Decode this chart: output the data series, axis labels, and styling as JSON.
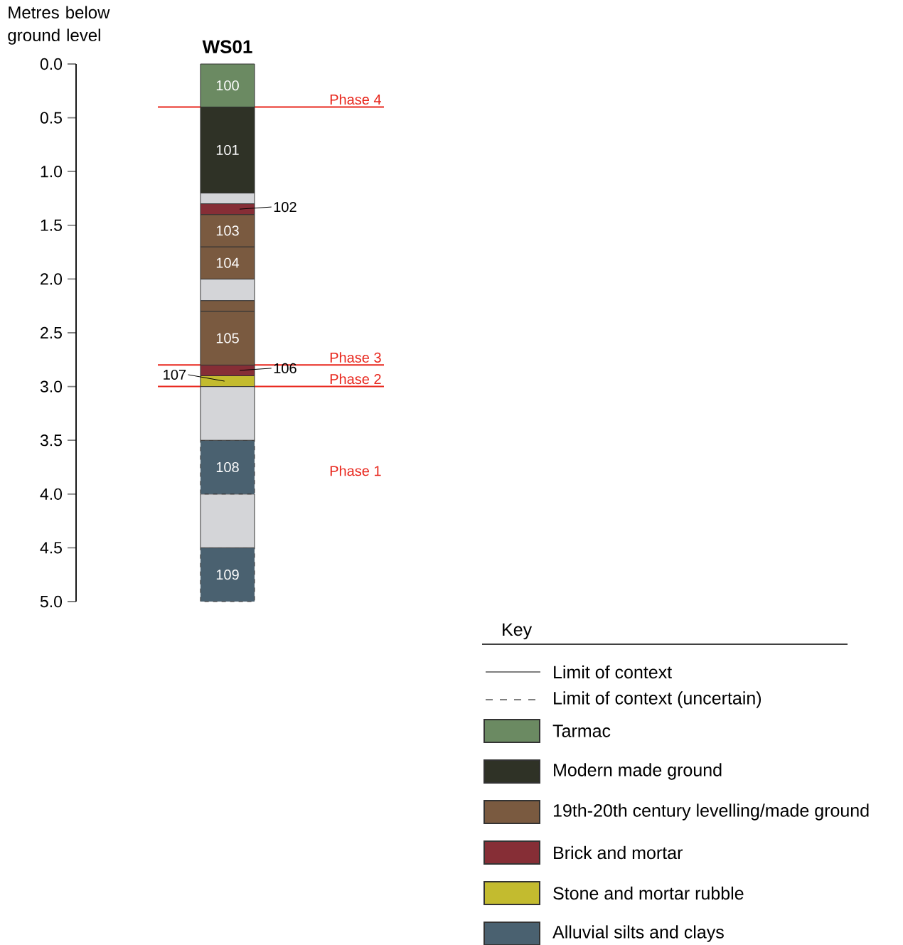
{
  "chart_data": {
    "type": "bar",
    "stacked": true,
    "categories": [
      "WS01"
    ],
    "ylabel": "Metres below ground level",
    "ylim": [
      5,
      0
    ],
    "yticks": [
      {
        "value": 0,
        "label": "0.0"
      },
      {
        "value": 0.5,
        "label": "0.5"
      },
      {
        "value": 1,
        "label": "1.0"
      },
      {
        "value": 1.5,
        "label": "1.5"
      },
      {
        "value": 2,
        "label": "2.0"
      },
      {
        "value": 2.5,
        "label": "2.5"
      },
      {
        "value": 3,
        "label": "3.0"
      },
      {
        "value": 3.5,
        "label": "3.5"
      },
      {
        "value": 4,
        "label": "4.0"
      },
      {
        "value": 4.5,
        "label": "4.5"
      },
      {
        "value": 5,
        "label": "5.0"
      }
    ],
    "series": [
      {
        "name": "Tarmac",
        "color": "#6b8a62",
        "values": [
          0.4
        ]
      },
      {
        "name": "Modern made ground",
        "color": "#2f3226",
        "values": [
          0.8
        ]
      },
      {
        "color": "#d4d5d8",
        "values": [
          0.1
        ]
      },
      {
        "color": "#862e36",
        "values": [
          0.1
        ]
      },
      {
        "name": "19th-20th century levelling/made ground",
        "color": "#7a5a40",
        "values": [
          0.3
        ]
      },
      {
        "color": "#7a5a40",
        "values": [
          0.3
        ]
      },
      {
        "color": "#d4d5d8",
        "values": [
          0.2
        ]
      },
      {
        "color": "#7a5a40",
        "values": [
          0.1
        ]
      },
      {
        "color": "#7a5a40",
        "values": [
          0.5
        ]
      },
      {
        "name": "Brick and mortar",
        "color": "#862e36",
        "values": [
          0.1
        ]
      },
      {
        "name": "Stone and mortar rubble",
        "color": "#c3bb2f",
        "values": [
          0.1
        ]
      },
      {
        "color": "#d4d5d8",
        "values": [
          0.5
        ]
      },
      {
        "name": "Alluvial silts and clays",
        "color": "#4a6170",
        "values": [
          0.5
        ],
        "line_style": "dashed"
      },
      {
        "color": "#d4d5d8",
        "values": [
          0.5
        ]
      },
      {
        "color": "#4a6170",
        "values": [
          0.5
        ],
        "line_style": "dashed"
      }
    ],
    "ref_lines": [
      {
        "axis": "y",
        "value": 0.4,
        "label": "Phase 4",
        "color": "#e8261c"
      },
      {
        "axis": "y",
        "value": 2.8,
        "label": "Phase 3",
        "color": "#e8261c"
      },
      {
        "axis": "y",
        "value": 3.0,
        "label": "Phase 2",
        "color": "#e8261c"
      }
    ],
    "annotations": [
      "Phase 1",
      "100",
      "101",
      "102",
      "103",
      "104",
      "105",
      "106",
      "107",
      "108",
      "109",
      "Limit of context",
      "Limit of context (uncertain)"
    ],
    "legend": "bottom right",
    "legend_title": "Key"
  }
}
